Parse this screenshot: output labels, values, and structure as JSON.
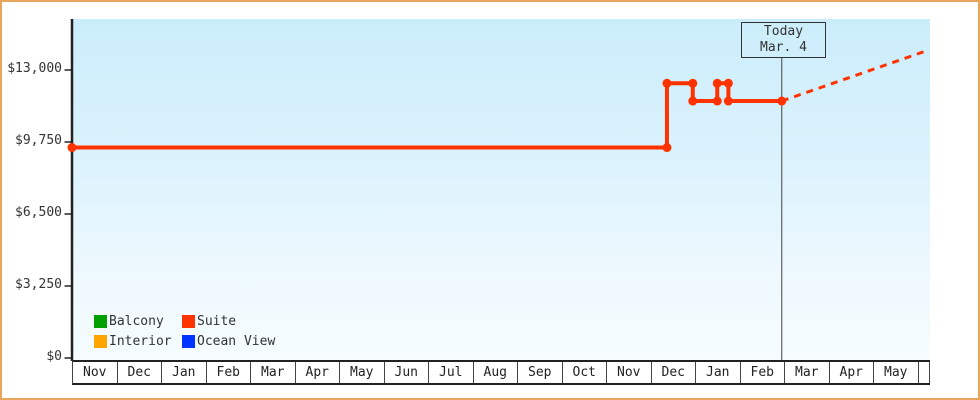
{
  "widget": {
    "frame_border_color": "#e6a55b",
    "plot_bg_top": "#cbedfb",
    "plot_bg_bottom": "#f6fcff"
  },
  "today_marker": {
    "line1": "Today",
    "line2": "Mar. 4"
  },
  "legend": {
    "items": [
      {
        "label": "Balcony",
        "color": "#00a000"
      },
      {
        "label": "Suite",
        "color": "#ff3300"
      },
      {
        "label": "Interior",
        "color": "#ffa500"
      },
      {
        "label": "Ocean View",
        "color": "#0033ff"
      }
    ]
  },
  "chart_data": {
    "type": "line",
    "description": "Cabin price history by category; only the Suite series has data. Step line with dot markers, dashed projected price trend after today (Mar. 4).",
    "grid": false,
    "legend_position": "bottom-left inside plot",
    "ylim": [
      0,
      13000
    ],
    "y_ticks": [
      {
        "label": "$0",
        "value": 0
      },
      {
        "label": "$3,250",
        "value": 3250
      },
      {
        "label": "$6,500",
        "value": 6500
      },
      {
        "label": "$9,750",
        "value": 9750
      },
      {
        "label": "$13,000",
        "value": 13000
      }
    ],
    "x_months": [
      "Nov",
      "Dec",
      "Jan",
      "Feb",
      "Mar",
      "Apr",
      "May",
      "Jun",
      "Jul",
      "Aug",
      "Sep",
      "Oct",
      "Nov",
      "Dec",
      "Jan",
      "Feb",
      "Mar",
      "Apr",
      "May"
    ],
    "today": {
      "month_index": 15.95,
      "label": "Mar. 4"
    },
    "series": [
      {
        "name": "Suite",
        "color": "#ff3300",
        "marker": "dot",
        "points": [
          {
            "month_index": 0.0,
            "value": 9500,
            "approx_date": "Nov (start)"
          },
          {
            "month_index": 13.37,
            "value": 9500,
            "approx_date": "mid-Dec"
          },
          {
            "month_index": 13.37,
            "value": 12400,
            "approx_date": "mid-Dec"
          },
          {
            "month_index": 13.95,
            "value": 12400,
            "approx_date": "late Dec"
          },
          {
            "month_index": 13.95,
            "value": 11600,
            "approx_date": "late Dec"
          },
          {
            "month_index": 14.5,
            "value": 11600,
            "approx_date": "mid-Jan"
          },
          {
            "month_index": 14.5,
            "value": 12400,
            "approx_date": "mid-Jan"
          },
          {
            "month_index": 14.75,
            "value": 12400,
            "approx_date": "late Jan"
          },
          {
            "month_index": 14.75,
            "value": 11600,
            "approx_date": "late Jan"
          },
          {
            "month_index": 15.95,
            "value": 11600,
            "approx_date": "Mar 4 (today)"
          }
        ],
        "projection": [
          {
            "month_index": 15.95,
            "value": 11600
          },
          {
            "month_index": 19.25,
            "value": 13900
          }
        ],
        "projection_style": "dashed"
      }
    ]
  }
}
